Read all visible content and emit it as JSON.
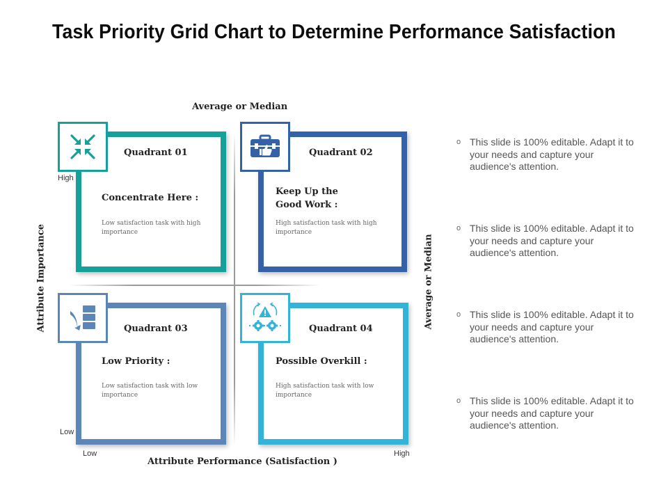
{
  "title": "Task Priority Grid Chart to Determine Performance Satisfaction",
  "axes": {
    "top_label": "Average or Median",
    "right_label": "Average or Median",
    "left_label": "Attribute Importance",
    "bottom_label": "Attribute Performance (Satisfaction )",
    "y_high": "High",
    "y_low": "Low",
    "x_low": "Low",
    "x_high": "High"
  },
  "quadrants": [
    {
      "title": "Quadrant 01",
      "heading": "Concentrate Here :",
      "description": "Low satisfaction task with high importance",
      "color": "#16a09a",
      "icon": "compress-arrows-icon"
    },
    {
      "title": "Quadrant 02",
      "heading": "Keep Up the Good Work :",
      "description": "High satisfaction task with high importance",
      "color": "#3461a8",
      "icon": "briefcase-thumbs-up-icon"
    },
    {
      "title": "Quadrant 03",
      "heading": "Low Priority :",
      "description": "Low satisfaction task with low importance",
      "color": "#5b86b7",
      "icon": "priority-stack-icon"
    },
    {
      "title": "Quadrant 04",
      "heading": "Possible Overkill :",
      "description": "High satisfaction task with low importance",
      "color": "#31b4d8",
      "icon": "warning-gears-icon"
    }
  ],
  "bullets": [
    {
      "marker": "o",
      "text": "This slide is 100% editable. Adapt it to your needs and capture your audience's attention."
    },
    {
      "marker": "o",
      "text": "This slide is 100% editable. Adapt it to your needs and capture your audience's attention."
    },
    {
      "marker": "o",
      "text": "This slide is 100% editable. Adapt it to your needs and capture your audience's attention."
    },
    {
      "marker": "o",
      "text": "This slide is 100% editable. Adapt it to your needs and capture your audience's attention."
    }
  ]
}
